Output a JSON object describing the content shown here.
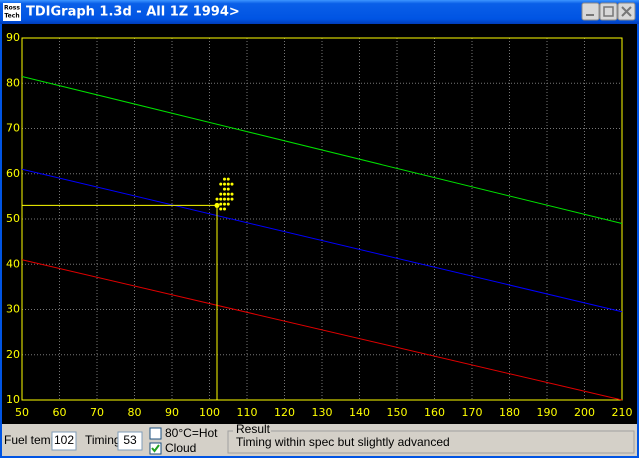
{
  "window": {
    "title": "TDIGraph 1.3d - All 1Z 1994>",
    "logo": [
      "Ross",
      "Tech"
    ]
  },
  "chart_data": {
    "type": "line",
    "x": [
      50,
      210
    ],
    "xlim": [
      50,
      210
    ],
    "xticks": [
      50,
      60,
      70,
      80,
      90,
      100,
      110,
      120,
      130,
      140,
      150,
      160,
      170,
      180,
      190,
      200,
      210
    ],
    "ylim": [
      10,
      90
    ],
    "yticks": [
      10,
      20,
      30,
      40,
      50,
      60,
      70,
      80,
      90
    ],
    "grid": true,
    "series": [
      {
        "color": "#00e000",
        "values": [
          81.5,
          49
        ]
      },
      {
        "color": "#0000ff",
        "values": [
          61,
          29.5
        ]
      },
      {
        "color": "#e00000",
        "values": [
          41,
          10
        ]
      }
    ],
    "cloud": {
      "color": "#ffff00",
      "x": [
        104,
        105,
        103,
        104,
        105,
        106,
        104,
        105,
        103,
        104,
        105,
        106,
        102,
        103,
        104,
        105,
        106,
        103,
        104,
        105,
        103,
        104
      ],
      "y": [
        58.8,
        58.8,
        57.7,
        57.7,
        57.7,
        57.7,
        56.6,
        56.6,
        55.5,
        55.5,
        55.5,
        55.5,
        54.4,
        54.4,
        54.4,
        54.4,
        54.4,
        53.3,
        53.3,
        53.3,
        52.2,
        52.2
      ]
    },
    "cursor_color": "#ffff00",
    "axis_color": "#ffff00"
  },
  "controls": {
    "fuel_temp": {
      "label": "Fuel temp",
      "value": 102
    },
    "timing": {
      "label": "Timing",
      "value": 53
    },
    "hot": {
      "label": "80°C=Hot",
      "checked": false
    },
    "cloud": {
      "label": "Cloud",
      "checked": true
    },
    "result": {
      "label": "Result",
      "text": "Timing within spec but slightly advanced"
    }
  }
}
